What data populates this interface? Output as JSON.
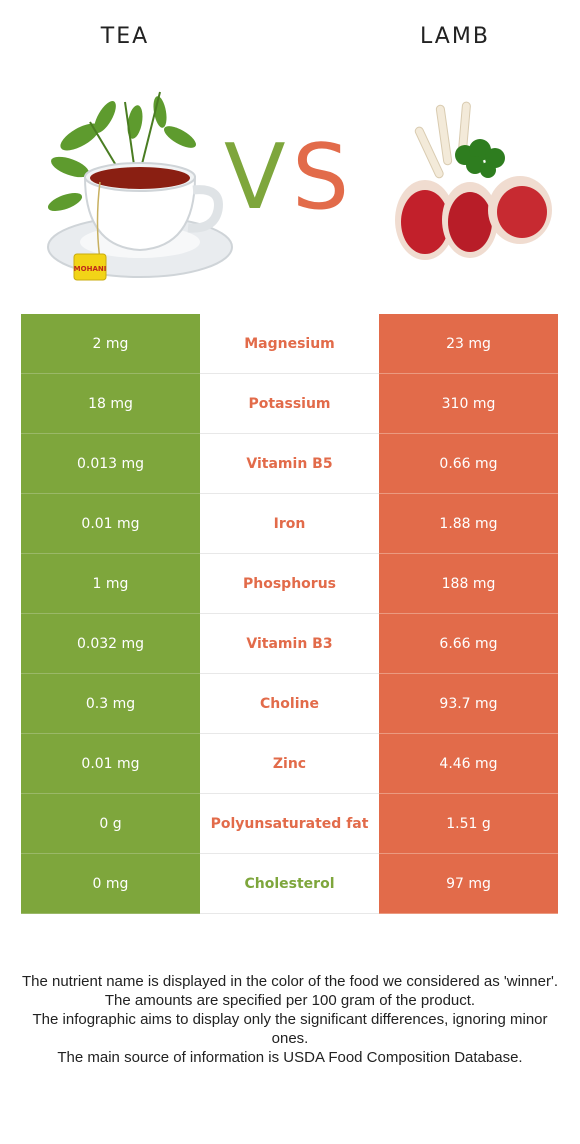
{
  "colors": {
    "tea": "#7ea63c",
    "lamb": "#e26b4a",
    "divider_left": "#9ab868",
    "divider_right": "#eb9a80",
    "divider_mid": "#e8e8e8"
  },
  "header": {
    "left_food": "TEA",
    "right_food": "LAMB",
    "vs_v": "V",
    "vs_s": "S"
  },
  "rows": [
    {
      "left": "2 mg",
      "nutrient": "Magnesium",
      "right": "23 mg",
      "winner": "lamb"
    },
    {
      "left": "18 mg",
      "nutrient": "Potassium",
      "right": "310 mg",
      "winner": "lamb"
    },
    {
      "left": "0.013 mg",
      "nutrient": "Vitamin B5",
      "right": "0.66 mg",
      "winner": "lamb"
    },
    {
      "left": "0.01 mg",
      "nutrient": "Iron",
      "right": "1.88 mg",
      "winner": "lamb"
    },
    {
      "left": "1 mg",
      "nutrient": "Phosphorus",
      "right": "188 mg",
      "winner": "lamb"
    },
    {
      "left": "0.032 mg",
      "nutrient": "Vitamin B3",
      "right": "6.66 mg",
      "winner": "lamb"
    },
    {
      "left": "0.3 mg",
      "nutrient": "Choline",
      "right": "93.7 mg",
      "winner": "lamb"
    },
    {
      "left": "0.01 mg",
      "nutrient": "Zinc",
      "right": "4.46 mg",
      "winner": "lamb"
    },
    {
      "left": "0 g",
      "nutrient": "Polyunsaturated fat",
      "right": "1.51 g",
      "winner": "lamb"
    },
    {
      "left": "0 mg",
      "nutrient": "Cholesterol",
      "right": "97 mg",
      "winner": "tea"
    }
  ],
  "footnote": [
    "The nutrient name is displayed in the color of the food we considered as 'winner'.",
    "The amounts are specified per 100 gram of the product.",
    "The infographic aims to display only the significant differences, ignoring minor ones.",
    "The main source of information is USDA Food Composition Database."
  ],
  "tea_bag_label": "MOHANI",
  "icons": {
    "tea": "tea-cup-icon",
    "lamb": "lamb-chops-icon"
  }
}
